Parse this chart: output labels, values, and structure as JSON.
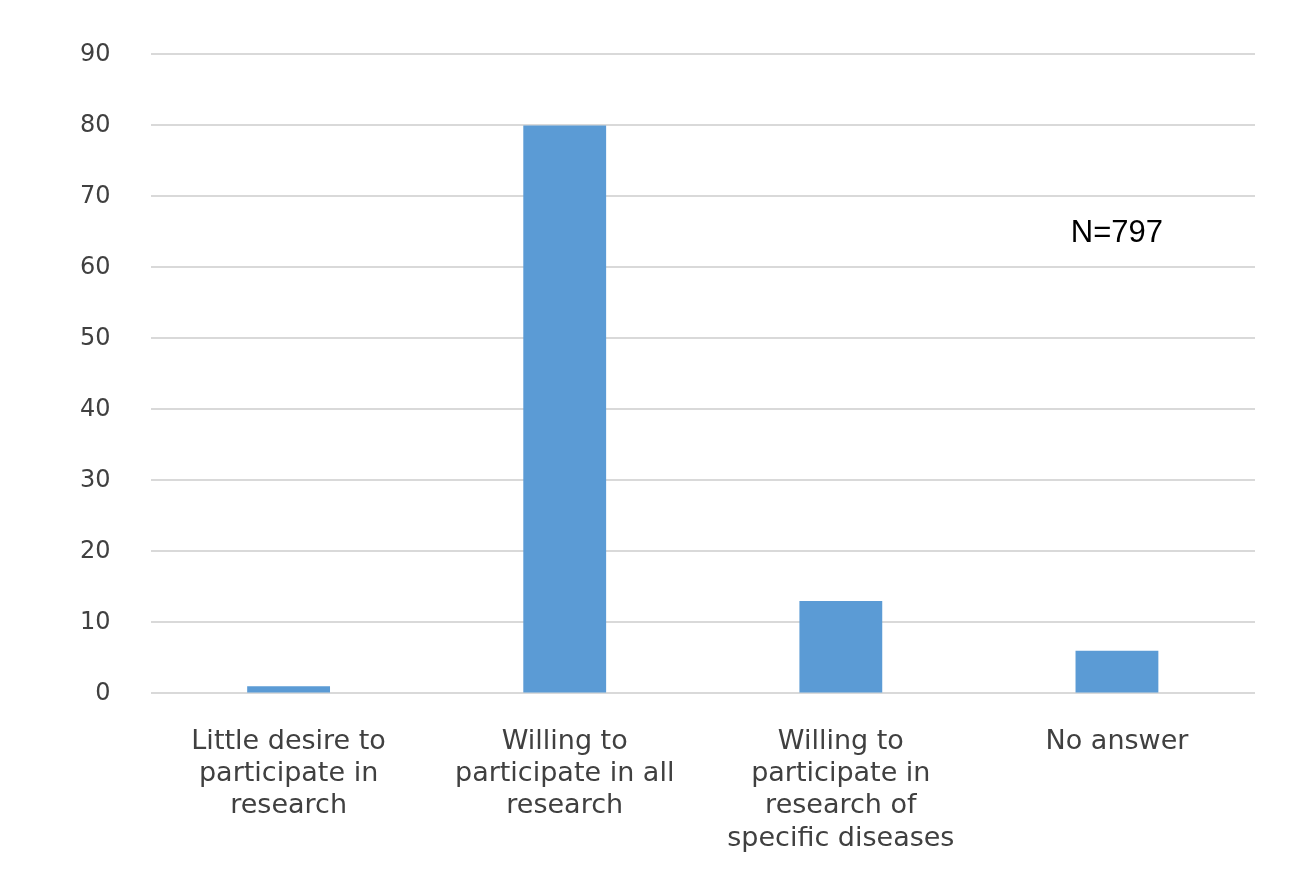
{
  "chart_data": {
    "type": "bar",
    "categories": [
      "Little desire to participate in research",
      "Willing to participate in all research",
      "Willing to participate in research of specific diseases",
      "No answer"
    ],
    "values": [
      1,
      80,
      13,
      6
    ],
    "color": "#5b9bd5",
    "ylim": [
      0,
      90
    ],
    "yticks": [
      0,
      10,
      20,
      30,
      40,
      50,
      60,
      70,
      80,
      90
    ],
    "grid": "y",
    "legend": false,
    "annotations": [
      "N=797"
    ]
  }
}
